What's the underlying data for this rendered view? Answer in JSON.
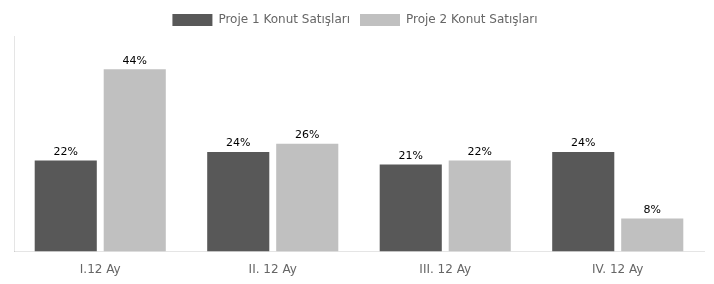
{
  "chart_data": {
    "type": "bar",
    "categories": [
      "I.12 Ay",
      "II. 12 Ay",
      "III. 12 Ay",
      "IV. 12 Ay"
    ],
    "series": [
      {
        "name": "Proje 1 Konut Satışları",
        "color": "#585858",
        "values": [
          22,
          24,
          21,
          24
        ],
        "value_labels": [
          "22%",
          "24%",
          "21%",
          "24%"
        ]
      },
      {
        "name": "Proje 2 Konut Satışları",
        "color": "#C0C0C0",
        "values": [
          44,
          26,
          22,
          8
        ],
        "value_labels": [
          "44%",
          "26%",
          "22%",
          "8%"
        ]
      }
    ],
    "ylim": [
      0,
      52
    ],
    "grid": false,
    "legend": "top",
    "data_labels": true,
    "tick_labels": "x"
  }
}
